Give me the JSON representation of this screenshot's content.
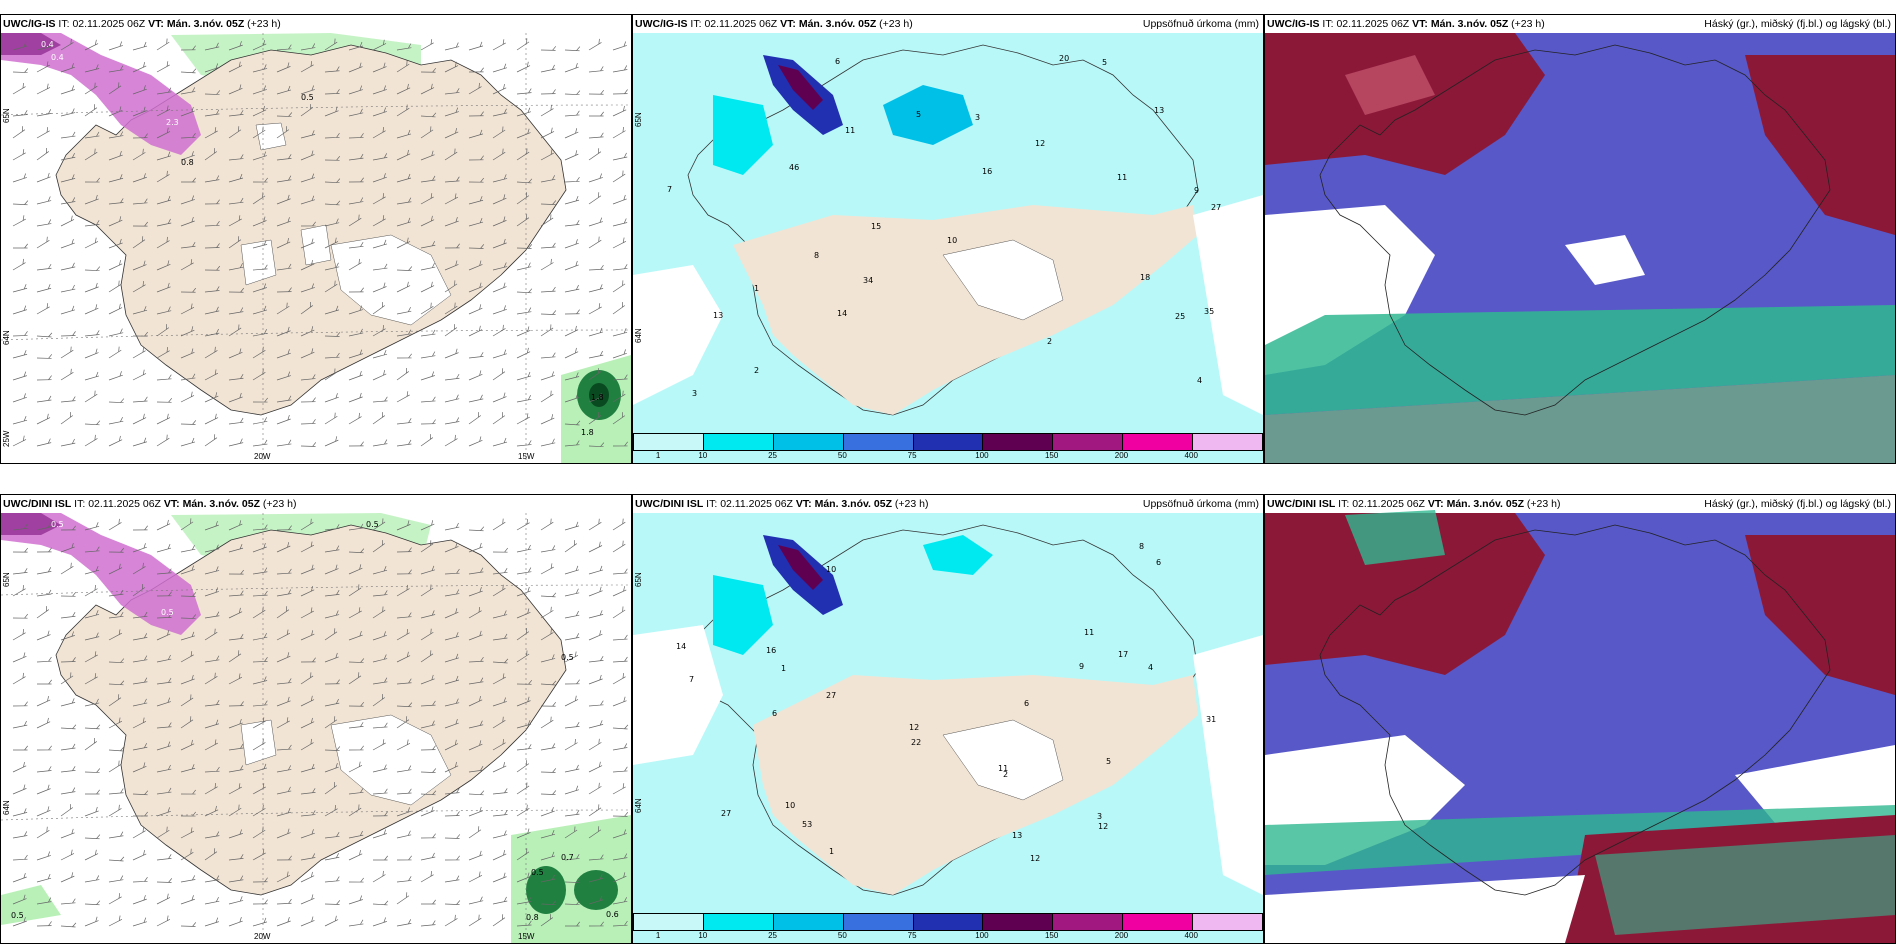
{
  "rows": [
    {
      "wind_panel": {
        "model": "UWC/IG-IS",
        "it_label": "IT:",
        "it": "02.11.2025 06Z",
        "vt_label": "VT:",
        "vt": "Mán. 3.nóv. 05Z",
        "lead": "(+23 h)",
        "lat_labels": [
          "65N",
          "64N"
        ],
        "lon_labels": [
          "25W",
          "20W",
          "15W"
        ],
        "values": [
          "0.4",
          "0.4",
          "0.8",
          "0.5",
          "1.8",
          "1.8",
          "2.3"
        ]
      },
      "precip_panel": {
        "model": "UWC/IG-IS",
        "it_label": "IT:",
        "it": "02.11.2025 06Z",
        "vt_label": "VT:",
        "vt": "Mán. 3.nóv. 05Z",
        "lead": "(+23 h)",
        "title": "Uppsöfnuð úrkoma (mm)",
        "lat_labels": [
          "65N",
          "64N"
        ],
        "values": [
          "11",
          "9",
          "12",
          "27",
          "15",
          "35",
          "34",
          "20",
          "25",
          "13",
          "46",
          "18",
          "11",
          "14",
          "13",
          "10",
          "8",
          "7",
          "6",
          "5",
          "4",
          "3",
          "2",
          "1",
          "16",
          "5",
          "3",
          "2"
        ]
      },
      "cloud_panel": {
        "model": "UWC/IG-IS",
        "it_label": "IT:",
        "it": "02.11.2025 06Z",
        "vt_label": "VT:",
        "vt": "Mán. 3.nóv. 05Z",
        "lead": "(+23 h)",
        "title": "Háský (gr.), miðský (fj.bl.) og lágský (bl.)"
      }
    },
    {
      "wind_panel": {
        "model": "UWC/DINI ISL",
        "it_label": "IT:",
        "it": "02.11.2025 06Z",
        "vt_label": "VT:",
        "vt": "Mán. 3.nóv. 05Z",
        "lead": "(+23 h)",
        "lat_labels": [
          "65N",
          "64N"
        ],
        "lon_labels": [
          "20W",
          "15W"
        ],
        "values": [
          "0.5",
          "0.5",
          "0.5",
          "0.7",
          "0.5",
          "0.8",
          "0.6",
          "0.5",
          "0.5"
        ]
      },
      "precip_panel": {
        "model": "UWC/DINI ISL",
        "it_label": "IT:",
        "it": "02.11.2025 06Z",
        "vt_label": "VT:",
        "vt": "Mán. 3.nóv. 05Z",
        "lead": "(+23 h)",
        "title": "Uppsöfnuð úrkoma (mm)",
        "lat_labels": [
          "65N",
          "64N"
        ],
        "values": [
          "12",
          "10",
          "10",
          "16",
          "17",
          "13",
          "31",
          "27",
          "22",
          "53",
          "27",
          "14",
          "12",
          "11",
          "9",
          "8",
          "7",
          "6",
          "5",
          "4",
          "3",
          "2",
          "1",
          "12",
          "6",
          "11",
          "6",
          "1"
        ]
      },
      "cloud_panel": {
        "model": "UWC/DINI ISL",
        "it_label": "IT:",
        "it": "02.11.2025 06Z",
        "vt_label": "VT:",
        "vt": "Mán. 3.nóv. 05Z",
        "lead": "(+23 h)",
        "title": "Háský (gr.), miðský (fj.bl.) og lágský (bl.)"
      }
    }
  ],
  "precip_scale": {
    "labels": [
      "1",
      "10",
      "25",
      "50",
      "75",
      "100",
      "150",
      "200",
      "400"
    ],
    "colors": [
      "#c8f8f8",
      "#00e8f0",
      "#00c0e8",
      "#3870e0",
      "#2030b0",
      "#600050",
      "#a01880",
      "#f000a0",
      "#f0b8f0"
    ]
  },
  "colors": {
    "land": "#f2e4d4",
    "wind_green": "#b8f0b8",
    "wind_dark_green": "#208040",
    "wind_magenta": "#d070d0",
    "precip_base": "#b8f8f8",
    "cloud_blue": "#5858c8",
    "cloud_maroon": "#8c1838",
    "cloud_green": "#30b890",
    "cloud_gray": "#c8c8c8"
  }
}
